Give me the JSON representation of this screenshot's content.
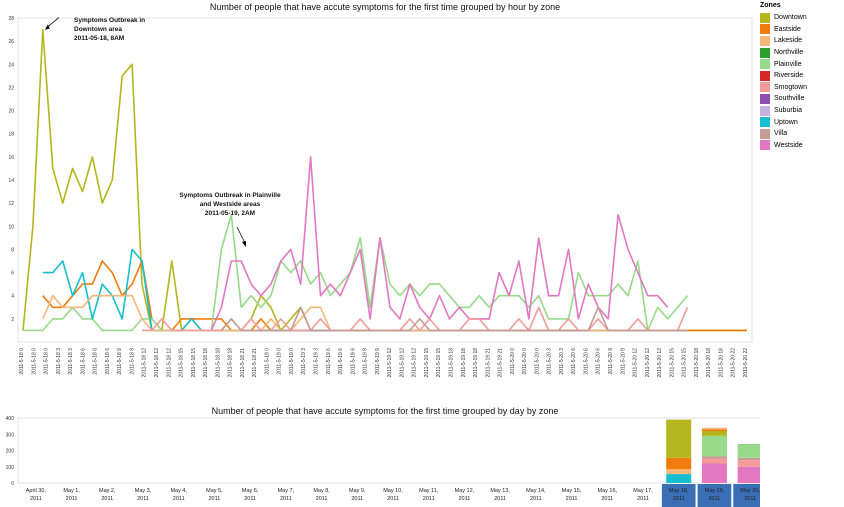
{
  "legend": {
    "title": "Zones",
    "items": [
      {
        "name": "Downtown",
        "color": "#b5b51e"
      },
      {
        "name": "Eastside",
        "color": "#f07c0e"
      },
      {
        "name": "Lakeside",
        "color": "#f5b87a"
      },
      {
        "name": "Northville",
        "color": "#2ca02c"
      },
      {
        "name": "Plainville",
        "color": "#98d98a"
      },
      {
        "name": "Riverside",
        "color": "#d62728"
      },
      {
        "name": "Smogtown",
        "color": "#f59a9a"
      },
      {
        "name": "Southville",
        "color": "#8c4fb0"
      },
      {
        "name": "Suburbia",
        "color": "#c5b0e0"
      },
      {
        "name": "Uptown",
        "color": "#17becf"
      },
      {
        "name": "Villa",
        "color": "#c49c94"
      },
      {
        "name": "Westside",
        "color": "#e377c2"
      }
    ]
  },
  "chart_data": [
    {
      "type": "line",
      "title": "Number of people that have accute symptoms for the first time grouped by hour by zone",
      "ylim": [
        0,
        28
      ],
      "yticks": [
        2,
        4,
        6,
        8,
        10,
        12,
        14,
        16,
        18,
        20,
        22,
        24,
        26,
        28
      ],
      "xlabels": [
        "2011-5-18 0",
        "2011-5-18 3",
        "2011-5-18 6",
        "2011-5-18 9",
        "2011-5-18 12",
        "2011-5-18 15",
        "2011-5-18 18",
        "2011-5-18 21",
        "2011-5-19 0",
        "2011-5-19 3",
        "2011-5-19 6",
        "2011-5-19 9",
        "2011-5-19 12",
        "2011-5-19 15",
        "2011-5-19 18",
        "2011-5-19 21",
        "2011-5-20 0",
        "2011-5-20 3",
        "2011-5-20 6",
        "2011-5-20 9",
        "2011-5-20 12",
        "2011-5-20 15",
        "2011-5-20 18",
        "2011-5-20 22"
      ],
      "series": [
        {
          "name": "Downtown",
          "color": "#b5b51e",
          "values": [
            1,
            10,
            27,
            15,
            12,
            15,
            13,
            16,
            12,
            14,
            23,
            24,
            5,
            1,
            1,
            7,
            1,
            2,
            1,
            1,
            1,
            1,
            1,
            2,
            4,
            3,
            1,
            2,
            3,
            1,
            1,
            1,
            1,
            1,
            1,
            1,
            1,
            1,
            1,
            1,
            1,
            1,
            1,
            1,
            1,
            1,
            1,
            1,
            1,
            1,
            1,
            1,
            1,
            1,
            1,
            1,
            1,
            1,
            1,
            1,
            1,
            1,
            1,
            1,
            1,
            1,
            1,
            1,
            1,
            1,
            1,
            1,
            1,
            1
          ]
        },
        {
          "name": "Eastside",
          "color": "#f07c0e",
          "values": [
            null,
            null,
            4,
            3,
            3,
            4,
            5,
            5,
            7,
            6,
            4,
            5,
            7,
            2,
            1,
            1,
            2,
            2,
            2,
            2,
            2,
            1,
            1,
            1,
            2,
            1,
            1,
            1,
            1,
            1,
            1,
            1,
            1,
            1,
            1,
            1,
            1,
            1,
            1,
            1,
            1,
            1,
            1,
            1,
            1,
            1,
            1,
            1,
            1,
            1,
            1,
            1,
            1,
            1,
            1,
            1,
            1,
            1,
            1,
            1,
            1,
            1,
            1,
            1,
            1,
            1,
            1,
            1,
            1,
            1,
            1,
            1,
            1,
            1
          ]
        },
        {
          "name": "Plainville",
          "color": "#98d98a",
          "values": [
            1,
            1,
            1,
            2,
            2,
            3,
            2,
            2,
            1,
            1,
            1,
            1,
            2,
            2,
            1,
            1,
            1,
            1,
            1,
            1,
            8,
            11,
            3,
            4,
            3,
            4,
            7,
            6,
            7,
            5,
            6,
            4,
            5,
            6,
            9,
            3,
            9,
            5,
            4,
            5,
            4,
            5,
            5,
            4,
            3,
            3,
            4,
            3,
            4,
            4,
            4,
            3,
            4,
            2,
            2,
            2,
            6,
            4,
            4,
            4,
            5,
            4,
            7,
            1,
            3,
            2,
            3,
            4
          ]
        },
        {
          "name": "Westside",
          "color": "#e377c2",
          "values": [
            null,
            null,
            null,
            null,
            null,
            null,
            null,
            null,
            null,
            null,
            null,
            null,
            null,
            null,
            null,
            null,
            null,
            null,
            null,
            1,
            3,
            7,
            7,
            5,
            4,
            5,
            7,
            8,
            5,
            16,
            4,
            5,
            4,
            6,
            8,
            2,
            9,
            3,
            2,
            5,
            3,
            2,
            4,
            2,
            3,
            2,
            2,
            2,
            6,
            4,
            7,
            2,
            9,
            4,
            4,
            8,
            2,
            5,
            3,
            2,
            11,
            8,
            6,
            4,
            4,
            3
          ]
        },
        {
          "name": "Uptown",
          "color": "#17becf",
          "values": [
            null,
            null,
            6,
            6,
            7,
            4,
            6,
            2,
            5,
            4,
            2,
            8,
            7,
            1,
            1,
            1,
            1,
            2,
            1,
            1,
            1,
            1,
            1,
            1,
            1,
            1,
            1,
            1,
            1,
            1,
            1,
            1,
            1,
            1,
            1,
            1,
            1,
            1,
            1,
            1,
            1,
            1,
            1,
            1,
            1,
            1,
            1,
            1,
            1,
            1,
            1,
            1,
            1,
            1,
            1,
            1,
            1,
            1,
            1,
            1,
            1,
            1,
            1,
            1,
            1,
            1,
            1,
            1
          ]
        },
        {
          "name": "Lakeside",
          "color": "#f5b87a",
          "values": [
            null,
            null,
            2,
            4,
            3,
            3,
            3,
            4,
            4,
            4,
            4,
            4,
            2,
            1,
            1,
            1,
            1,
            1,
            1,
            1,
            1,
            1,
            1,
            1,
            1,
            2,
            1,
            1,
            2,
            3,
            3,
            1,
            1,
            1,
            1,
            1,
            1,
            1,
            1,
            1,
            1,
            1,
            1,
            1,
            1,
            1,
            1,
            1,
            1,
            1,
            1,
            1,
            1,
            1,
            1,
            1,
            1,
            1,
            1,
            1,
            1,
            1,
            1,
            1,
            1,
            1,
            1,
            1
          ]
        },
        {
          "name": "Smogtown",
          "color": "#f59a9a",
          "values": [
            null,
            null,
            null,
            null,
            null,
            null,
            null,
            null,
            null,
            null,
            null,
            null,
            1,
            1,
            2,
            1,
            1,
            1,
            1,
            1,
            1,
            2,
            1,
            2,
            1,
            1,
            2,
            1,
            1,
            1,
            2,
            1,
            1,
            1,
            2,
            1,
            1,
            1,
            1,
            2,
            1,
            2,
            1,
            1,
            1,
            2,
            2,
            1,
            1,
            1,
            2,
            1,
            3,
            1,
            1,
            2,
            1,
            1,
            2,
            1,
            1,
            1,
            2,
            1,
            1,
            1,
            1,
            3
          ]
        },
        {
          "name": "Villa",
          "color": "#c49c94",
          "values": [
            null,
            null,
            null,
            null,
            null,
            null,
            null,
            null,
            null,
            null,
            null,
            null,
            null,
            null,
            null,
            null,
            null,
            null,
            null,
            null,
            1,
            2,
            1,
            1,
            1,
            1,
            1,
            1,
            3,
            1,
            1,
            1,
            1,
            1,
            1,
            1,
            1,
            1,
            1,
            1,
            2,
            1,
            1,
            1,
            1,
            1,
            1,
            1,
            1,
            1,
            1,
            1,
            1,
            1,
            1,
            1,
            1,
            1,
            3,
            1,
            1,
            1,
            1,
            1,
            1,
            1,
            1,
            1
          ]
        }
      ],
      "annotations": [
        {
          "lines": [
            "Symptoms Outbreak in",
            "Downtown area",
            "2011-05-18, 8AM"
          ]
        },
        {
          "lines": [
            "Symptoms Outbreak in Plainville",
            "and Westside areas",
            "2011-05-19, 2AM"
          ]
        }
      ]
    },
    {
      "type": "bar",
      "title": "Number of people that have accute symptoms for the first time grouped by day by zone",
      "ylim": [
        0,
        400
      ],
      "yticks": [
        0,
        100,
        200,
        300,
        400
      ],
      "categories": [
        "April 30, 2011",
        "May 1, 2011",
        "May 2, 2011",
        "May 3, 2011",
        "May 4, 2011",
        "May 5, 2011",
        "May 6, 2011",
        "May 7, 2011",
        "May 8, 2011",
        "May 9, 2011",
        "May 10, 2011",
        "May 11, 2011",
        "May 12, 2011",
        "May 13, 2011",
        "May 14, 2011",
        "May 15, 2011",
        "May 16, 2011",
        "May 17, 2011",
        "May 18, 2011",
        "May 19, 2011",
        "May 20, 2011"
      ],
      "highlighted": [
        "May 18, 2011",
        "May 19, 2011",
        "May 20, 2011"
      ],
      "stacks": {
        "May 18, 2011": [
          {
            "zone": "Uptown",
            "value": 55,
            "color": "#17becf"
          },
          {
            "zone": "Lakeside",
            "value": 30,
            "color": "#f5b87a"
          },
          {
            "zone": "Eastside",
            "value": 70,
            "color": "#f07c0e"
          },
          {
            "zone": "Downtown",
            "value": 235,
            "color": "#b5b51e"
          }
        ],
        "May 19, 2011": [
          {
            "zone": "Westside",
            "value": 120,
            "color": "#e377c2"
          },
          {
            "zone": "Smogtown",
            "value": 30,
            "color": "#f59a9a"
          },
          {
            "zone": "Villa",
            "value": 15,
            "color": "#c49c94"
          },
          {
            "zone": "Plainville",
            "value": 125,
            "color": "#98d98a"
          },
          {
            "zone": "Downtown",
            "value": 30,
            "color": "#b5b51e"
          },
          {
            "zone": "Eastside",
            "value": 10,
            "color": "#f07c0e"
          },
          {
            "zone": "Lakeside",
            "value": 10,
            "color": "#f5b87a"
          }
        ],
        "May 20, 2011": [
          {
            "zone": "Westside",
            "value": 100,
            "color": "#e377c2"
          },
          {
            "zone": "Smogtown",
            "value": 40,
            "color": "#f59a9a"
          },
          {
            "zone": "Villa",
            "value": 15,
            "color": "#c49c94"
          },
          {
            "zone": "Plainville",
            "value": 80,
            "color": "#98d98a"
          },
          {
            "zone": "Northville",
            "value": 3,
            "color": "#2ca02c"
          }
        ]
      }
    }
  ]
}
